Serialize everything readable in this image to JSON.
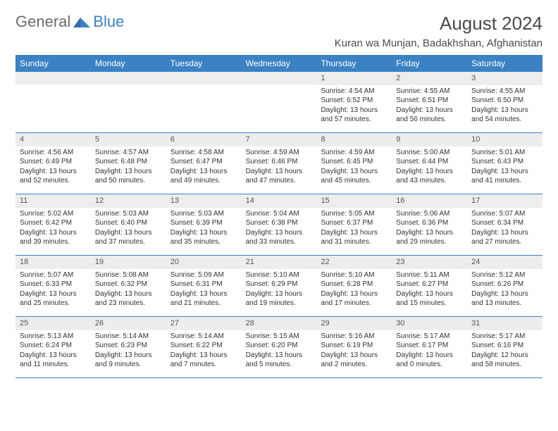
{
  "logo": {
    "word1": "General",
    "word2": "Blue"
  },
  "title": "August 2024",
  "location": "Kuran wa Munjan, Badakhshan, Afghanistan",
  "day_headers": [
    "Sunday",
    "Monday",
    "Tuesday",
    "Wednesday",
    "Thursday",
    "Friday",
    "Saturday"
  ],
  "colors": {
    "header_bg": "#3b82c4",
    "header_text": "#ffffff",
    "daynum_bg": "#ededed",
    "border": "#3b82c4",
    "logo_gray": "#6b6b6b",
    "logo_blue": "#3b82c4"
  },
  "weeks": [
    [
      {
        "n": "",
        "sunrise": "",
        "sunset": "",
        "daylight": ""
      },
      {
        "n": "",
        "sunrise": "",
        "sunset": "",
        "daylight": ""
      },
      {
        "n": "",
        "sunrise": "",
        "sunset": "",
        "daylight": ""
      },
      {
        "n": "",
        "sunrise": "",
        "sunset": "",
        "daylight": ""
      },
      {
        "n": "1",
        "sunrise": "Sunrise: 4:54 AM",
        "sunset": "Sunset: 6:52 PM",
        "daylight": "Daylight: 13 hours and 57 minutes."
      },
      {
        "n": "2",
        "sunrise": "Sunrise: 4:55 AM",
        "sunset": "Sunset: 6:51 PM",
        "daylight": "Daylight: 13 hours and 56 minutes."
      },
      {
        "n": "3",
        "sunrise": "Sunrise: 4:55 AM",
        "sunset": "Sunset: 6:50 PM",
        "daylight": "Daylight: 13 hours and 54 minutes."
      }
    ],
    [
      {
        "n": "4",
        "sunrise": "Sunrise: 4:56 AM",
        "sunset": "Sunset: 6:49 PM",
        "daylight": "Daylight: 13 hours and 52 minutes."
      },
      {
        "n": "5",
        "sunrise": "Sunrise: 4:57 AM",
        "sunset": "Sunset: 6:48 PM",
        "daylight": "Daylight: 13 hours and 50 minutes."
      },
      {
        "n": "6",
        "sunrise": "Sunrise: 4:58 AM",
        "sunset": "Sunset: 6:47 PM",
        "daylight": "Daylight: 13 hours and 49 minutes."
      },
      {
        "n": "7",
        "sunrise": "Sunrise: 4:59 AM",
        "sunset": "Sunset: 6:46 PM",
        "daylight": "Daylight: 13 hours and 47 minutes."
      },
      {
        "n": "8",
        "sunrise": "Sunrise: 4:59 AM",
        "sunset": "Sunset: 6:45 PM",
        "daylight": "Daylight: 13 hours and 45 minutes."
      },
      {
        "n": "9",
        "sunrise": "Sunrise: 5:00 AM",
        "sunset": "Sunset: 6:44 PM",
        "daylight": "Daylight: 13 hours and 43 minutes."
      },
      {
        "n": "10",
        "sunrise": "Sunrise: 5:01 AM",
        "sunset": "Sunset: 6:43 PM",
        "daylight": "Daylight: 13 hours and 41 minutes."
      }
    ],
    [
      {
        "n": "11",
        "sunrise": "Sunrise: 5:02 AM",
        "sunset": "Sunset: 6:42 PM",
        "daylight": "Daylight: 13 hours and 39 minutes."
      },
      {
        "n": "12",
        "sunrise": "Sunrise: 5:03 AM",
        "sunset": "Sunset: 6:40 PM",
        "daylight": "Daylight: 13 hours and 37 minutes."
      },
      {
        "n": "13",
        "sunrise": "Sunrise: 5:03 AM",
        "sunset": "Sunset: 6:39 PM",
        "daylight": "Daylight: 13 hours and 35 minutes."
      },
      {
        "n": "14",
        "sunrise": "Sunrise: 5:04 AM",
        "sunset": "Sunset: 6:38 PM",
        "daylight": "Daylight: 13 hours and 33 minutes."
      },
      {
        "n": "15",
        "sunrise": "Sunrise: 5:05 AM",
        "sunset": "Sunset: 6:37 PM",
        "daylight": "Daylight: 13 hours and 31 minutes."
      },
      {
        "n": "16",
        "sunrise": "Sunrise: 5:06 AM",
        "sunset": "Sunset: 6:36 PM",
        "daylight": "Daylight: 13 hours and 29 minutes."
      },
      {
        "n": "17",
        "sunrise": "Sunrise: 5:07 AM",
        "sunset": "Sunset: 6:34 PM",
        "daylight": "Daylight: 13 hours and 27 minutes."
      }
    ],
    [
      {
        "n": "18",
        "sunrise": "Sunrise: 5:07 AM",
        "sunset": "Sunset: 6:33 PM",
        "daylight": "Daylight: 13 hours and 25 minutes."
      },
      {
        "n": "19",
        "sunrise": "Sunrise: 5:08 AM",
        "sunset": "Sunset: 6:32 PM",
        "daylight": "Daylight: 13 hours and 23 minutes."
      },
      {
        "n": "20",
        "sunrise": "Sunrise: 5:09 AM",
        "sunset": "Sunset: 6:31 PM",
        "daylight": "Daylight: 13 hours and 21 minutes."
      },
      {
        "n": "21",
        "sunrise": "Sunrise: 5:10 AM",
        "sunset": "Sunset: 6:29 PM",
        "daylight": "Daylight: 13 hours and 19 minutes."
      },
      {
        "n": "22",
        "sunrise": "Sunrise: 5:10 AM",
        "sunset": "Sunset: 6:28 PM",
        "daylight": "Daylight: 13 hours and 17 minutes."
      },
      {
        "n": "23",
        "sunrise": "Sunrise: 5:11 AM",
        "sunset": "Sunset: 6:27 PM",
        "daylight": "Daylight: 13 hours and 15 minutes."
      },
      {
        "n": "24",
        "sunrise": "Sunrise: 5:12 AM",
        "sunset": "Sunset: 6:26 PM",
        "daylight": "Daylight: 13 hours and 13 minutes."
      }
    ],
    [
      {
        "n": "25",
        "sunrise": "Sunrise: 5:13 AM",
        "sunset": "Sunset: 6:24 PM",
        "daylight": "Daylight: 13 hours and 11 minutes."
      },
      {
        "n": "26",
        "sunrise": "Sunrise: 5:14 AM",
        "sunset": "Sunset: 6:23 PM",
        "daylight": "Daylight: 13 hours and 9 minutes."
      },
      {
        "n": "27",
        "sunrise": "Sunrise: 5:14 AM",
        "sunset": "Sunset: 6:22 PM",
        "daylight": "Daylight: 13 hours and 7 minutes."
      },
      {
        "n": "28",
        "sunrise": "Sunrise: 5:15 AM",
        "sunset": "Sunset: 6:20 PM",
        "daylight": "Daylight: 13 hours and 5 minutes."
      },
      {
        "n": "29",
        "sunrise": "Sunrise: 5:16 AM",
        "sunset": "Sunset: 6:19 PM",
        "daylight": "Daylight: 13 hours and 2 minutes."
      },
      {
        "n": "30",
        "sunrise": "Sunrise: 5:17 AM",
        "sunset": "Sunset: 6:17 PM",
        "daylight": "Daylight: 13 hours and 0 minutes."
      },
      {
        "n": "31",
        "sunrise": "Sunrise: 5:17 AM",
        "sunset": "Sunset: 6:16 PM",
        "daylight": "Daylight: 12 hours and 58 minutes."
      }
    ]
  ]
}
